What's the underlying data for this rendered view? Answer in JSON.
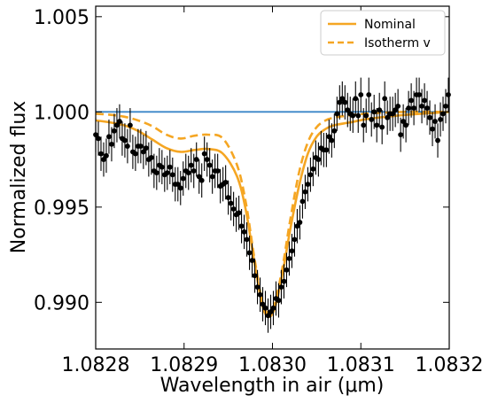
{
  "chart_data": {
    "type": "scatter",
    "xlabel": "Wavelength in air (μm)",
    "ylabel": "Normalized flux",
    "xlim": [
      1.0828,
      1.0832
    ],
    "ylim": [
      0.98755,
      1.00555
    ],
    "x_ticks": [
      1.0828,
      1.0829,
      1.083,
      1.0831,
      1.0832
    ],
    "x_tick_labels": [
      "1.0828",
      "1.0829",
      "1.0830",
      "1.0831",
      "1.0832"
    ],
    "y_ticks": [
      0.99,
      0.995,
      1.0,
      1.005
    ],
    "y_tick_labels": [
      "0.990",
      "0.995",
      "1.000",
      "1.005"
    ],
    "grid": false,
    "legend_position": "top-right",
    "reference_line": {
      "y": 1.0,
      "color": "#3a86c8"
    },
    "observed": {
      "color": "#000000",
      "error": 0.0009,
      "x": [
        1.0828,
        1.082803,
        1.082806,
        1.082809,
        1.082812,
        1.082815,
        1.082818,
        1.082821,
        1.082824,
        1.082827,
        1.08283,
        1.082833,
        1.082836,
        1.082839,
        1.082842,
        1.082845,
        1.082848,
        1.082851,
        1.082854,
        1.082857,
        1.08286,
        1.082863,
        1.082866,
        1.082869,
        1.082872,
        1.082875,
        1.082878,
        1.082881,
        1.082884,
        1.082887,
        1.08289,
        1.082893,
        1.082896,
        1.082899,
        1.082902,
        1.082905,
        1.082908,
        1.082911,
        1.082914,
        1.082917,
        1.08292,
        1.082923,
        1.082926,
        1.082929,
        1.082932,
        1.082935,
        1.082938,
        1.082941,
        1.082944,
        1.082947,
        1.08295,
        1.082953,
        1.082956,
        1.082959,
        1.082962,
        1.082965,
        1.082968,
        1.082971,
        1.082974,
        1.082977,
        1.08298,
        1.082983,
        1.082986,
        1.082989,
        1.082992,
        1.082995,
        1.082998,
        1.083001,
        1.083004,
        1.083007,
        1.08301,
        1.083013,
        1.083016,
        1.083019,
        1.083022,
        1.083025,
        1.083028,
        1.083031,
        1.083034,
        1.083037,
        1.08304,
        1.083043,
        1.083046,
        1.083049,
        1.083052,
        1.083055,
        1.083058,
        1.083061,
        1.083064,
        1.083067,
        1.08307,
        1.083073,
        1.083076,
        1.083079,
        1.083082,
        1.083085,
        1.083088,
        1.083091,
        1.083094,
        1.083097,
        1.0831,
        1.083103,
        1.083106,
        1.083109,
        1.083112,
        1.083115,
        1.083118,
        1.083121,
        1.083124,
        1.083127,
        1.08313,
        1.083133,
        1.083136,
        1.083139,
        1.083142,
        1.083145,
        1.083148,
        1.083151,
        1.083154,
        1.083157,
        1.08316,
        1.083163,
        1.083166,
        1.083169,
        1.083172,
        1.083175,
        1.083178,
        1.083181,
        1.083184,
        1.083187,
        1.08319,
        1.083193,
        1.083196,
        1.083199
      ],
      "y": [
        0.9988,
        0.9986,
        0.9978,
        0.9975,
        0.9977,
        0.9987,
        0.9983,
        0.999,
        0.9993,
        0.9995,
        0.9986,
        0.9985,
        0.9982,
        0.9993,
        0.9979,
        0.9978,
        0.9982,
        0.9982,
        0.9979,
        0.9981,
        0.9975,
        0.9976,
        0.9969,
        0.9968,
        0.9972,
        0.9971,
        0.9967,
        0.9968,
        0.9971,
        0.9967,
        0.9962,
        0.9962,
        0.996,
        0.9965,
        0.9969,
        0.9968,
        0.9972,
        0.9969,
        0.9975,
        0.9966,
        0.9964,
        0.9978,
        0.9975,
        0.9972,
        0.9966,
        0.9969,
        0.9969,
        0.9961,
        0.9962,
        0.9963,
        0.9955,
        0.9952,
        0.9949,
        0.9946,
        0.9947,
        0.994,
        0.9937,
        0.9933,
        0.9926,
        0.9922,
        0.9914,
        0.9908,
        0.9904,
        0.9899,
        0.9897,
        0.9893,
        0.9895,
        0.9897,
        0.9902,
        0.9901,
        0.9908,
        0.9911,
        0.9917,
        0.9923,
        0.9927,
        0.9933,
        0.994,
        0.9942,
        0.9953,
        0.9958,
        0.9962,
        0.9967,
        0.997,
        0.9976,
        0.9975,
        0.9981,
        0.998,
        0.998,
        0.9987,
        0.9985,
        0.999,
        0.9999,
        1.0005,
        1.0007,
        1.0005,
        1.0001,
        0.9999,
        0.9998,
        1.0007,
        0.9998,
        1.0009,
        0.9993,
        0.9998,
        1.0009,
        0.9996,
        1.0,
        0.9993,
        1.0001,
        0.9992,
        1.0007,
        0.9997,
        0.9999,
        0.9999,
        1.0001,
        1.0003,
        0.9988,
        0.9995,
        0.9993,
        1.0002,
        1.0006,
        1.0002,
        1.0009,
        1.0009,
        1.0003,
        1.0006,
        1.0002,
        0.9997,
        0.9991,
        0.9995,
        0.9985,
        0.9996,
        0.9999,
        1.0003,
        1.0009
      ]
    },
    "series": [
      {
        "name": "Nominal",
        "color": "#f5a623",
        "style": "solid",
        "x": [
          1.0828,
          1.082816,
          1.082832,
          1.082848,
          1.082864,
          1.08288,
          1.082896,
          1.082912,
          1.082928,
          1.082944,
          1.08296,
          1.08297,
          1.08298,
          1.08299,
          1.083,
          1.08301,
          1.08302,
          1.08303,
          1.08304,
          1.08305,
          1.08306,
          1.08307,
          1.083088,
          1.083104,
          1.08312,
          1.083136,
          1.083152,
          1.083168,
          1.083184,
          1.0832
        ],
        "y": [
          0.99955,
          0.99945,
          0.9993,
          0.999,
          0.99855,
          0.9981,
          0.9979,
          0.998,
          0.99805,
          0.9978,
          0.9966,
          0.9948,
          0.992,
          0.9896,
          0.9894,
          0.9912,
          0.9938,
          0.9961,
          0.9978,
          0.9987,
          0.9991,
          0.9993,
          0.99945,
          0.9996,
          0.9997,
          0.99978,
          0.99985,
          0.9999,
          0.99995,
          1.0
        ]
      },
      {
        "name": "Isotherm v",
        "color": "#f5a623",
        "style": "dashed",
        "x": [
          1.0828,
          1.082816,
          1.082832,
          1.082848,
          1.082864,
          1.08288,
          1.082896,
          1.082912,
          1.082928,
          1.082944,
          1.08296,
          1.08297,
          1.08298,
          1.08299,
          1.083,
          1.08301,
          1.08302,
          1.08303,
          1.08304,
          1.08305,
          1.08306,
          1.08307,
          1.083088,
          1.083104,
          1.08312,
          1.083136,
          1.083152,
          1.083168,
          1.083184,
          1.0832
        ],
        "y": [
          0.9999,
          0.99985,
          0.99975,
          0.99955,
          0.99925,
          0.9988,
          0.9986,
          0.99875,
          0.9988,
          0.9986,
          0.9972,
          0.9952,
          0.9922,
          0.9898,
          0.9896,
          0.9915,
          0.9943,
          0.9968,
          0.9984,
          0.9992,
          0.99955,
          0.9997,
          0.99982,
          0.9999,
          0.99995,
          0.99998,
          1.0,
          1.0,
          1.0,
          1.0
        ]
      }
    ]
  }
}
